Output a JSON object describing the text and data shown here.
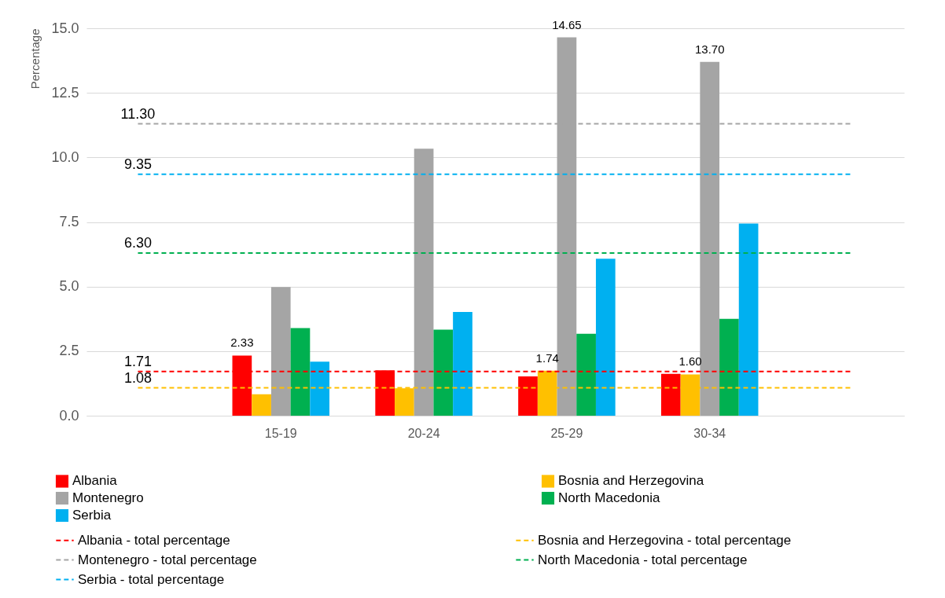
{
  "chart_data": {
    "type": "bar",
    "ylabel": "Percentage",
    "categories": [
      null,
      "15-19",
      "20-24",
      "25-29",
      "30-34",
      null
    ],
    "ylim": [
      0,
      15
    ],
    "yticks": [
      {
        "value": 0,
        "label": "0.0"
      },
      {
        "value": 2.5,
        "label": "2.5"
      },
      {
        "value": 5,
        "label": "5.0"
      },
      {
        "value": 7.5,
        "label": "7.5"
      },
      {
        "value": 10,
        "label": "10.0"
      },
      {
        "value": 12.5,
        "label": "12.5"
      },
      {
        "value": 15,
        "label": "15.0"
      }
    ],
    "grid": "y",
    "legend": "bottom",
    "series": [
      {
        "name": "Albania",
        "color": "#ff0000",
        "values": [
          null,
          2.33,
          1.76,
          1.52,
          1.62,
          null
        ],
        "value_labels": [
          null,
          "2.33",
          null,
          null,
          null,
          null
        ]
      },
      {
        "name": "Bosnia and Herzegovina",
        "color": "#ffc000",
        "values": [
          null,
          0.83,
          1.06,
          1.74,
          1.6,
          null
        ],
        "value_labels": [
          null,
          null,
          null,
          "1.74",
          "1.60",
          null
        ]
      },
      {
        "name": "Montenegro",
        "color": "#a5a5a5",
        "values": [
          null,
          4.98,
          10.34,
          14.65,
          13.7,
          null
        ],
        "value_labels": [
          null,
          null,
          null,
          "14.65",
          "13.70",
          null
        ]
      },
      {
        "name": "North Macedonia",
        "color": "#00b050",
        "values": [
          null,
          3.39,
          3.33,
          3.17,
          3.75,
          null
        ]
      },
      {
        "name": "Serbia",
        "color": "#00b0f0",
        "values": [
          null,
          2.09,
          4.02,
          6.08,
          7.44,
          null
        ]
      },
      {
        "name": "Albania - total percentage",
        "type": "line",
        "line_style": "dashed",
        "color": "#ff0000",
        "values": [
          1.71,
          1.71,
          1.71,
          1.71,
          1.71,
          1.71
        ],
        "value_labels": [
          "1.71",
          null,
          null,
          null,
          null,
          null
        ]
      },
      {
        "name": "Bosnia and Herzegovina - total percentage",
        "type": "line",
        "line_style": "dashed",
        "color": "#ffc000",
        "values": [
          1.08,
          1.08,
          1.08,
          1.08,
          1.08,
          1.08
        ],
        "value_labels": [
          "1.08",
          null,
          null,
          null,
          null,
          null
        ]
      },
      {
        "name": "Montenegro - total percentage",
        "type": "line",
        "line_style": "dashed",
        "color": "#a5a5a5",
        "values": [
          11.3,
          11.3,
          11.3,
          11.3,
          11.3,
          11.3
        ],
        "value_labels": [
          "11.30",
          null,
          null,
          null,
          null,
          null
        ]
      },
      {
        "name": "North Macedonia - total percentage",
        "type": "line",
        "line_style": "dashed",
        "color": "#00b050",
        "values": [
          6.3,
          6.3,
          6.3,
          6.3,
          6.3,
          6.3
        ],
        "value_labels": [
          "6.30",
          null,
          null,
          null,
          null,
          null
        ]
      },
      {
        "name": "Serbia - total percentage",
        "type": "line",
        "line_style": "dashed",
        "color": "#00b0f0",
        "values": [
          9.35,
          9.35,
          9.35,
          9.35,
          9.35,
          9.35
        ],
        "value_labels": [
          "9.35",
          null,
          null,
          null,
          null,
          null
        ]
      }
    ]
  }
}
